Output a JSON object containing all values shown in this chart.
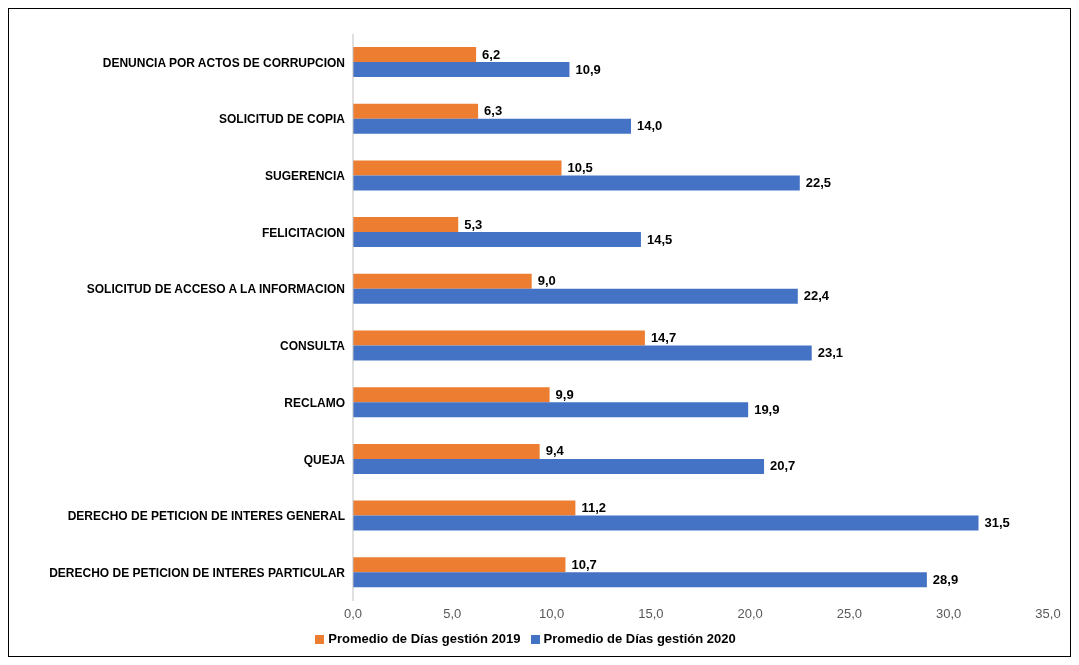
{
  "chart_data": {
    "type": "bar",
    "orientation": "horizontal",
    "categories": [
      "DENUNCIA POR ACTOS DE CORRUPCION",
      "SOLICITUD DE COPIA",
      "SUGERENCIA",
      "FELICITACION",
      "SOLICITUD DE ACCESO A LA INFORMACION",
      "CONSULTA",
      "RECLAMO",
      "QUEJA",
      "DERECHO DE PETICION DE INTERES GENERAL",
      "DERECHO DE PETICION DE INTERES PARTICULAR"
    ],
    "series": [
      {
        "name": "Promedio de Días gestión 2019",
        "color": "#ed7d31",
        "values": [
          6.2,
          6.3,
          10.5,
          5.3,
          9.0,
          14.7,
          9.9,
          9.4,
          11.2,
          10.7
        ],
        "value_labels": [
          "6,2",
          "6,3",
          "10,5",
          "5,3",
          "9,0",
          "14,7",
          "9,9",
          "9,4",
          "11,2",
          "10,7"
        ]
      },
      {
        "name": "Promedio de Días gestión 2020",
        "color": "#4472c4",
        "values": [
          10.9,
          14.0,
          22.5,
          14.5,
          22.4,
          23.1,
          19.9,
          20.7,
          31.5,
          28.9
        ],
        "value_labels": [
          "10,9",
          "14,0",
          "22,5",
          "14,5",
          "22,4",
          "23,1",
          "19,9",
          "20,7",
          "31,5",
          "28,9"
        ]
      }
    ],
    "xlim": [
      0,
      35
    ],
    "xticks": [
      {
        "value": 0,
        "label": "0,0"
      },
      {
        "value": 5,
        "label": "5,0"
      },
      {
        "value": 10,
        "label": "10,0"
      },
      {
        "value": 15,
        "label": "15,0"
      },
      {
        "value": 20,
        "label": "20,0"
      },
      {
        "value": 25,
        "label": "25,0"
      },
      {
        "value": 30,
        "label": "30,0"
      },
      {
        "value": 35,
        "label": "35,0"
      }
    ],
    "grid": false,
    "legend": "bottom"
  }
}
